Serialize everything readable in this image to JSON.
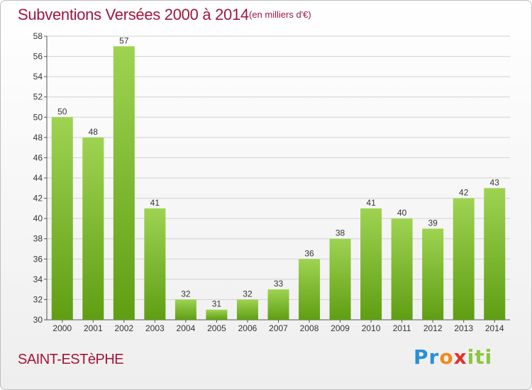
{
  "header": {
    "title": "Subventions Versées 2000 à 2014",
    "subtitle": "(en milliers d'€)"
  },
  "footer": {
    "commune": "SAINT-ESTèPHE",
    "logo_text": "Proxiti"
  },
  "colors": {
    "title": "#a0153e",
    "bar_top": "#9ed352",
    "bar_bottom": "#5f9e13",
    "grid": "#d2d2d2"
  },
  "chart_data": {
    "type": "bar",
    "title": "Subventions Versées 2000 à 2014",
    "subtitle": "(en milliers d'€)",
    "xlabel": "",
    "ylabel": "",
    "categories": [
      "2000",
      "2001",
      "2002",
      "2003",
      "2004",
      "2005",
      "2006",
      "2007",
      "2008",
      "2009",
      "2010",
      "2011",
      "2012",
      "2013",
      "2014"
    ],
    "values": [
      50,
      48,
      57,
      41,
      32,
      31,
      32,
      33,
      36,
      38,
      41,
      40,
      39,
      42,
      43
    ],
    "ylim": [
      30,
      58
    ],
    "yticks": [
      30,
      32,
      34,
      36,
      38,
      40,
      42,
      44,
      46,
      48,
      50,
      52,
      54,
      56,
      58
    ],
    "grid": true,
    "data_labels": true
  }
}
